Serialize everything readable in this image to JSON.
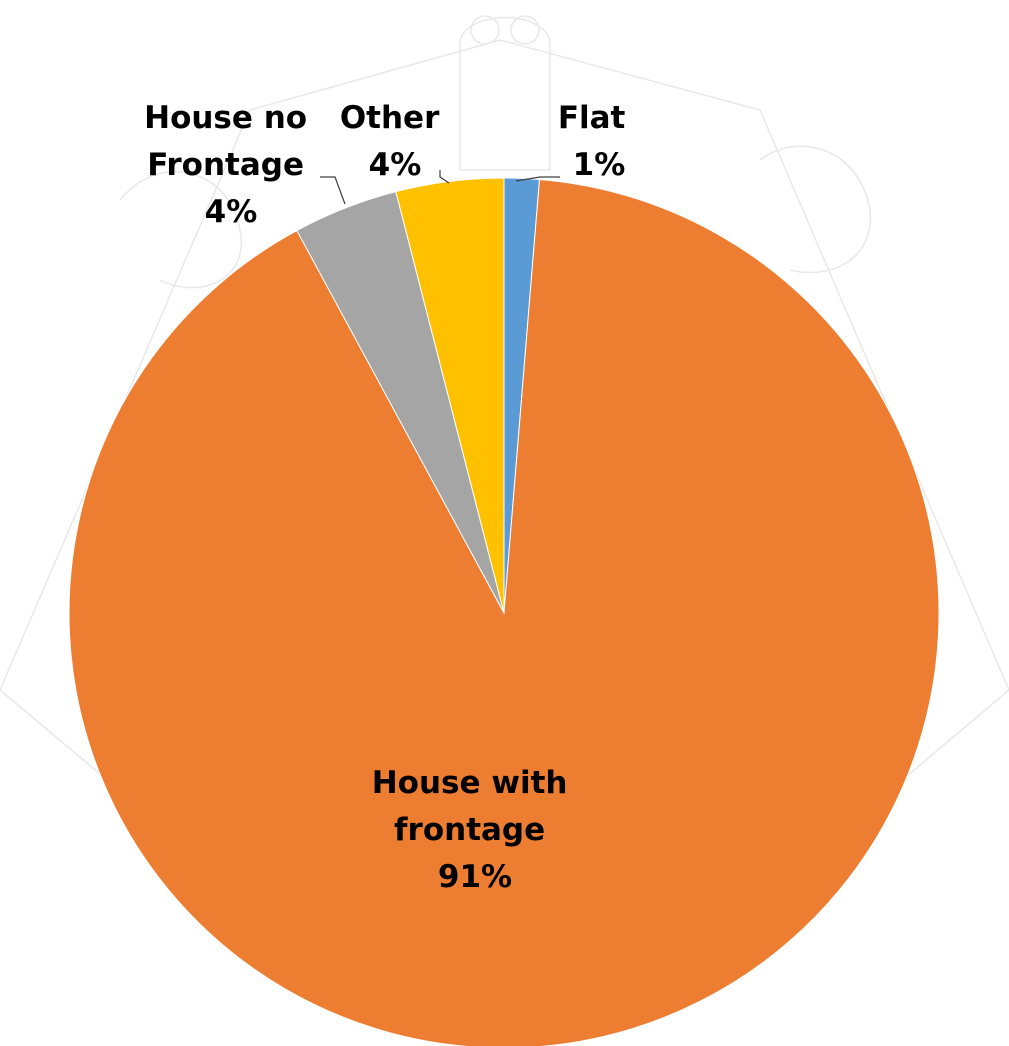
{
  "chart_data": {
    "type": "pie",
    "title": "",
    "start_angle_deg": 0,
    "direction": "clockwise",
    "slices": [
      {
        "label": "Flat",
        "percent_label": "1%",
        "value": 1.3,
        "color": "#5b9bd5"
      },
      {
        "label": "House with frontage",
        "percent_label": "91%",
        "value": 90.8,
        "color": "#ed7d31"
      },
      {
        "label": "House no Frontage",
        "percent_label": "4%",
        "value": 3.9,
        "color": "#a5a5a5"
      },
      {
        "label": "Other",
        "percent_label": "4%",
        "value": 4.0,
        "color": "#ffc000"
      }
    ],
    "labels": {
      "flat": {
        "lines": [
          "Flat",
          "1%"
        ]
      },
      "house_with_frontage": {
        "lines": [
          "House with",
          "frontage",
          "91%"
        ]
      },
      "house_no_frontage": {
        "lines": [
          "House no",
          "Frontage",
          "4%"
        ]
      },
      "other": {
        "lines": [
          "Other",
          "4%"
        ]
      }
    },
    "legend": "none",
    "watermark": "university-crest"
  }
}
